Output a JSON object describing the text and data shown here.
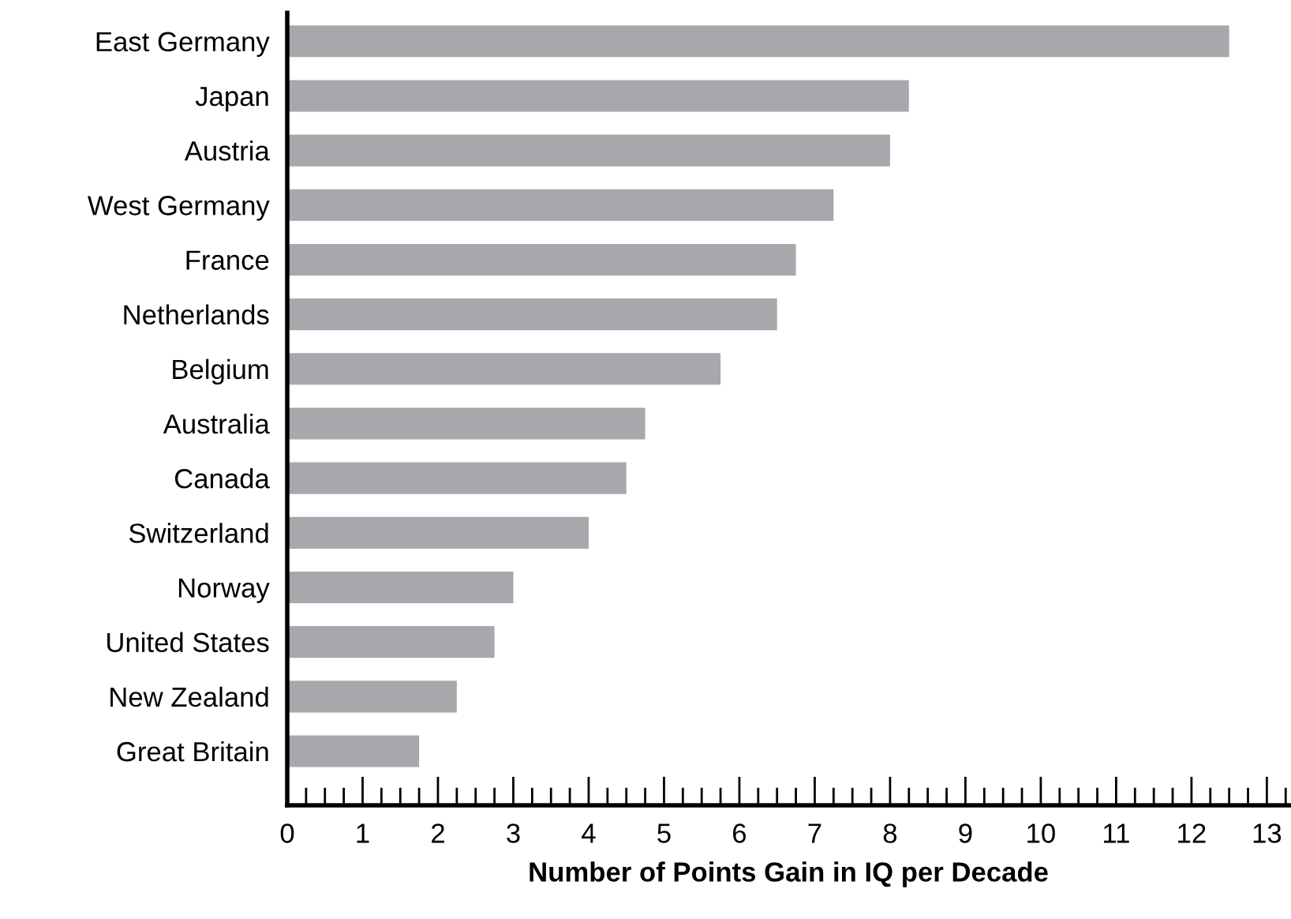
{
  "chart_data": {
    "type": "bar",
    "orientation": "horizontal",
    "xlabel": "Number of Points Gain in IQ per Decade",
    "categories": [
      "East Germany",
      "Japan",
      "Austria",
      "West Germany",
      "France",
      "Netherlands",
      "Belgium",
      "Australia",
      "Canada",
      "Switzerland",
      "Norway",
      "United States",
      "New Zealand",
      "Great Britain"
    ],
    "values": [
      12.5,
      8.25,
      8.0,
      7.25,
      6.75,
      6.5,
      5.75,
      4.75,
      4.5,
      4.0,
      3.0,
      2.75,
      2.25,
      1.75
    ],
    "color": "#a7a8ab",
    "xlim": [
      0,
      13.3
    ],
    "xticks": [
      0,
      1,
      2,
      3,
      4,
      5,
      6,
      7,
      8,
      9,
      10,
      11,
      12,
      13
    ],
    "grid": false,
    "legend": false
  }
}
